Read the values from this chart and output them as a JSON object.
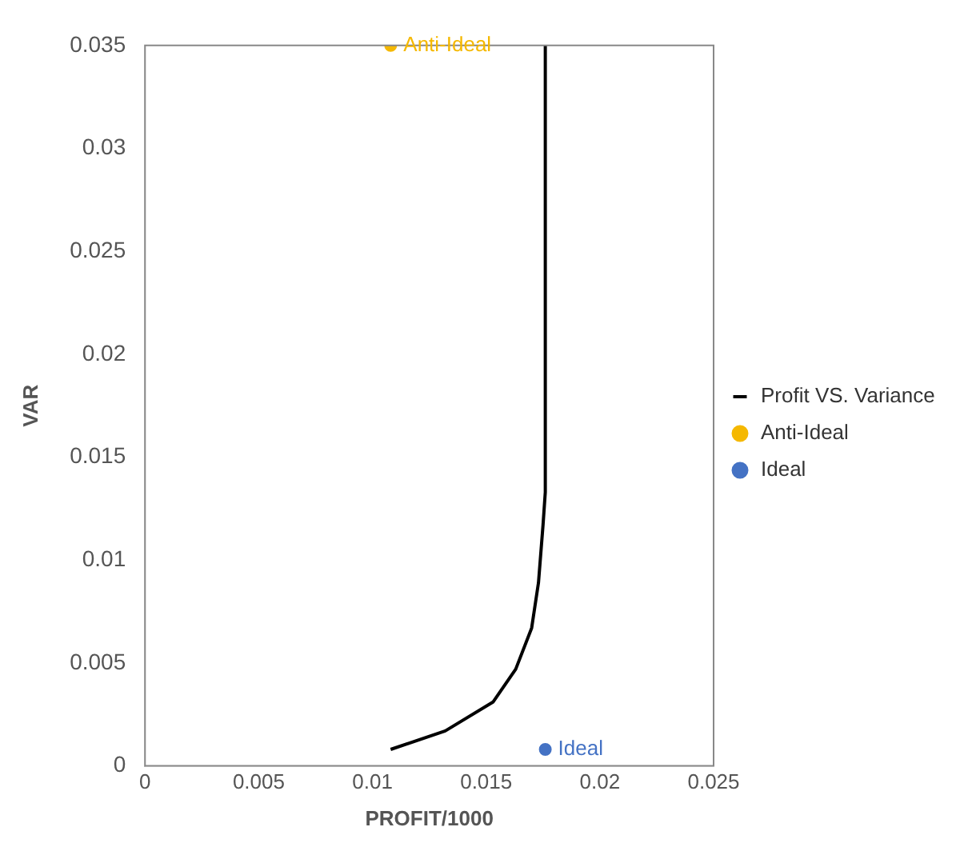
{
  "chart_data": {
    "type": "line",
    "xlabel": "PROFIT/1000",
    "ylabel": "VAR",
    "xlim": [
      0,
      0.025
    ],
    "xticks": [
      0,
      0.005,
      0.01,
      0.015,
      0.02,
      0.025
    ],
    "ylim": [
      0,
      0.035
    ],
    "yticks": [
      0,
      0.005,
      0.01,
      0.015,
      0.02,
      0.025,
      0.03,
      0.035
    ],
    "grid": false,
    "legend": "right",
    "series": [
      {
        "name": "Profit VS. Variance",
        "color": "#000000",
        "marker": "none",
        "x": [
          0.0108,
          0.0132,
          0.0153,
          0.0163,
          0.017,
          0.0173,
          0.0175,
          0.0176,
          0.0176
        ],
        "values": [
          0.0008,
          0.0017,
          0.0031,
          0.0047,
          0.0067,
          0.0089,
          0.0117,
          0.0133,
          0.035
        ]
      },
      {
        "name": "Anti-Ideal",
        "type": "scatter",
        "color": "#f5b800",
        "marker": "circle",
        "x": [
          0.0108
        ],
        "values": [
          0.035
        ]
      },
      {
        "name": "Ideal",
        "type": "scatter",
        "color": "#4472c4",
        "marker": "circle",
        "x": [
          0.0176
        ],
        "values": [
          0.0008
        ]
      }
    ]
  }
}
